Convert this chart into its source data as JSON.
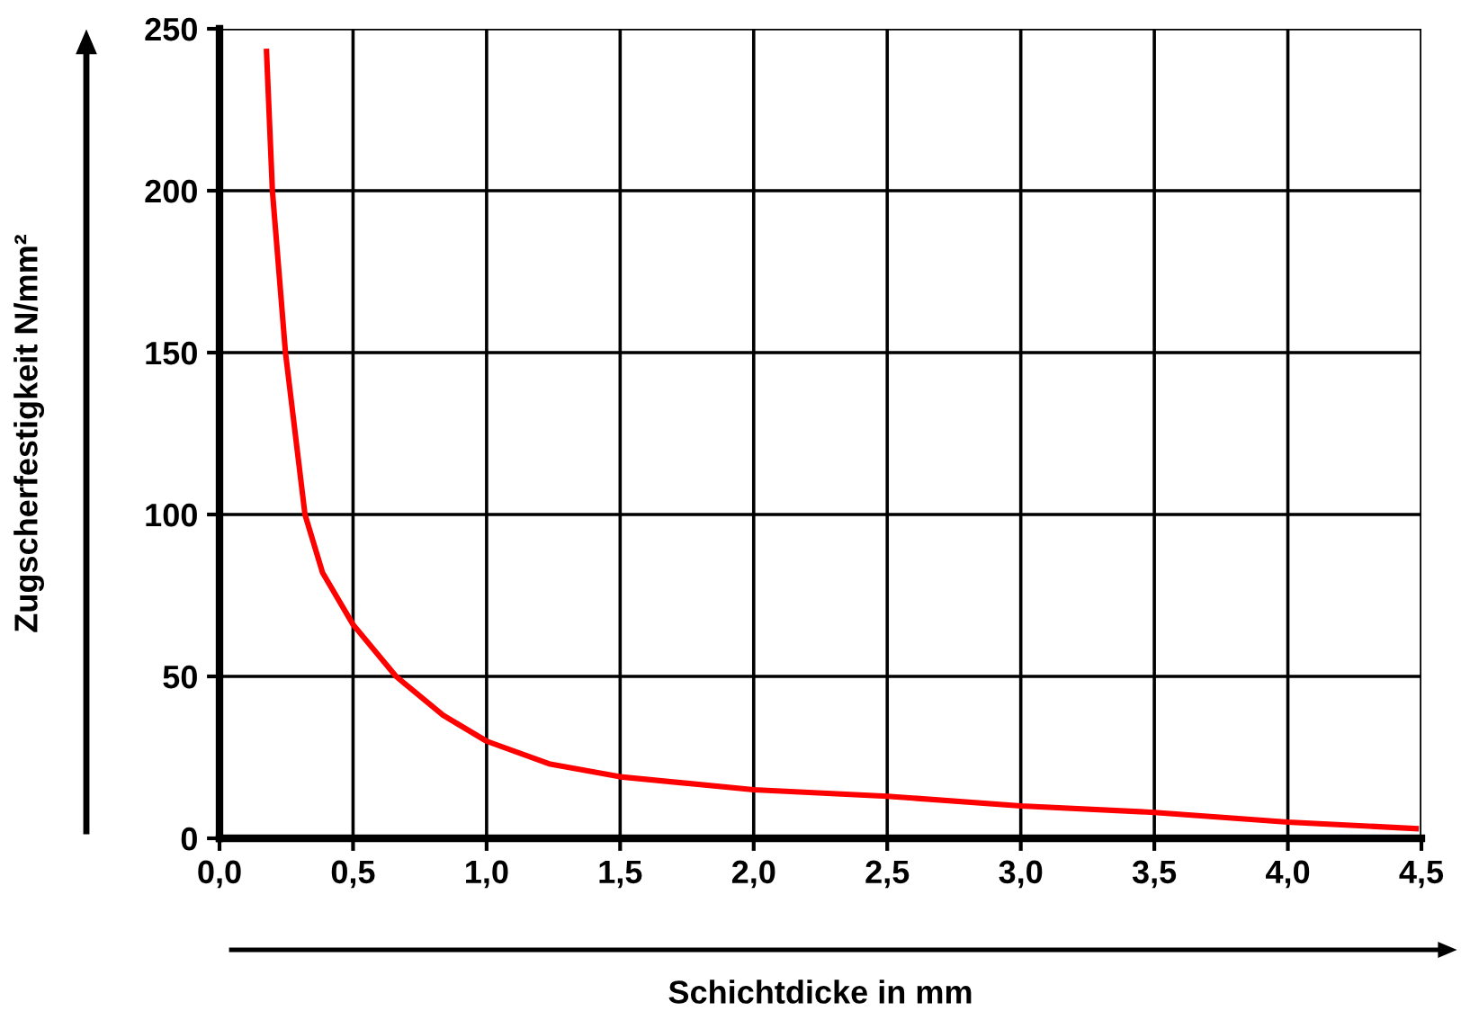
{
  "chart_data": {
    "type": "line",
    "xlabel": "Schichtdicke in mm",
    "ylabel": "Zugscherfestigkeit N/mm²",
    "x": [
      0.176,
      0.198,
      0.247,
      0.32,
      0.386,
      0.5,
      0.661,
      0.837,
      1.0,
      1.234,
      1.5,
      2.0,
      2.5,
      3.0,
      3.5,
      4.0,
      4.48
    ],
    "series": [
      {
        "color": "#ff0000",
        "values": [
          243,
          200,
          150,
          100,
          82,
          66,
          50,
          38,
          30,
          23,
          19,
          15,
          13,
          10,
          8,
          5,
          3
        ]
      }
    ],
    "xlim": [
      0,
      4.5
    ],
    "ylim": [
      0,
      250
    ],
    "xticks": [
      {
        "value": 0,
        "label": "0,0"
      },
      {
        "value": 0.5,
        "label": "0,5"
      },
      {
        "value": 1,
        "label": "1,0"
      },
      {
        "value": 1.5,
        "label": "1,5"
      },
      {
        "value": 2,
        "label": "2,0"
      },
      {
        "value": 2.5,
        "label": "2,5"
      },
      {
        "value": 3,
        "label": "3,0"
      },
      {
        "value": 3.5,
        "label": "3,5"
      },
      {
        "value": 4,
        "label": "4,0"
      },
      {
        "value": 4.5,
        "label": "4,5"
      }
    ],
    "yticks": [
      0,
      50,
      100,
      150,
      200,
      250
    ],
    "grid": true,
    "legend": false,
    "marker": "none",
    "line_style": "solid"
  }
}
